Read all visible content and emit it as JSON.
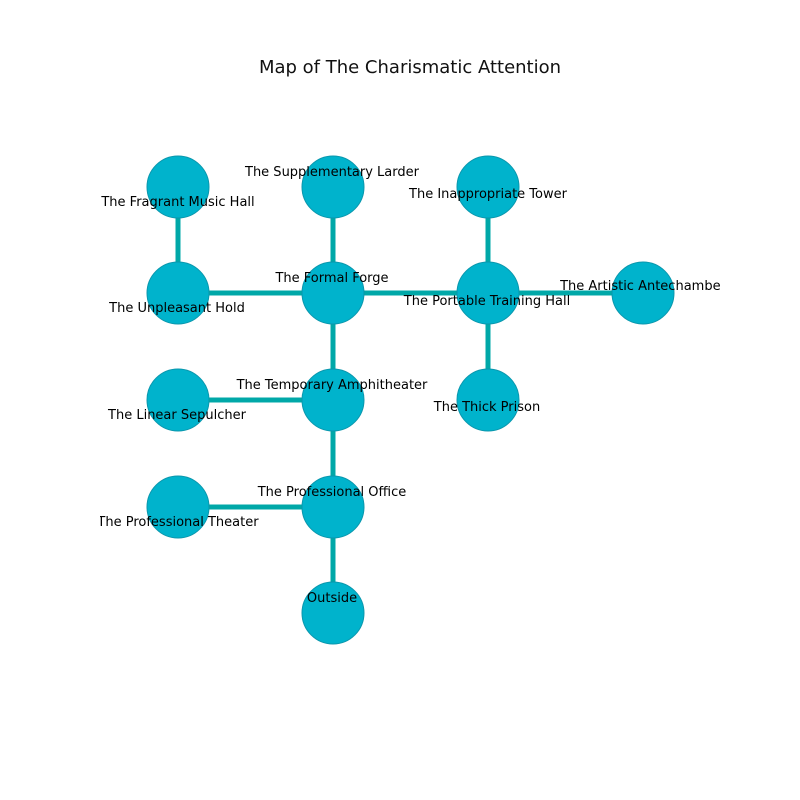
{
  "title": "Map of The Charismatic Attention",
  "colors": {
    "node_fill": "#00b3cc",
    "node_stroke": "#0a97ad",
    "edge": "#00a8a8"
  },
  "rooms": {
    "fragrant_music_hall": "The Fragrant Music Hall",
    "supplementary_larder": "The Supplementary Larder",
    "inappropriate_tower": "The Inappropriate Tower",
    "unpleasant_hold": "The Unpleasant Hold",
    "formal_forge": "The Formal Forge",
    "portable_training_hall": "The Portable Training Hall",
    "artistic_antechamber": "The Artistic Antechamber",
    "linear_sepulcher": "The Linear Sepulcher",
    "temporary_amphitheater": "The Temporary Amphitheater",
    "thick_prison": "The Thick Prison",
    "professional_theater": "The Professional Theater",
    "professional_office": "The Professional Office",
    "outside": "Outside"
  },
  "connections": [
    [
      "fragrant_music_hall",
      "unpleasant_hold"
    ],
    [
      "supplementary_larder",
      "formal_forge"
    ],
    [
      "inappropriate_tower",
      "portable_training_hall"
    ],
    [
      "unpleasant_hold",
      "formal_forge"
    ],
    [
      "formal_forge",
      "portable_training_hall"
    ],
    [
      "portable_training_hall",
      "artistic_antechamber"
    ],
    [
      "portable_training_hall",
      "thick_prison"
    ],
    [
      "formal_forge",
      "temporary_amphitheater"
    ],
    [
      "linear_sepulcher",
      "temporary_amphitheater"
    ],
    [
      "temporary_amphitheater",
      "professional_office"
    ],
    [
      "professional_theater",
      "professional_office"
    ],
    [
      "professional_office",
      "outside"
    ]
  ]
}
